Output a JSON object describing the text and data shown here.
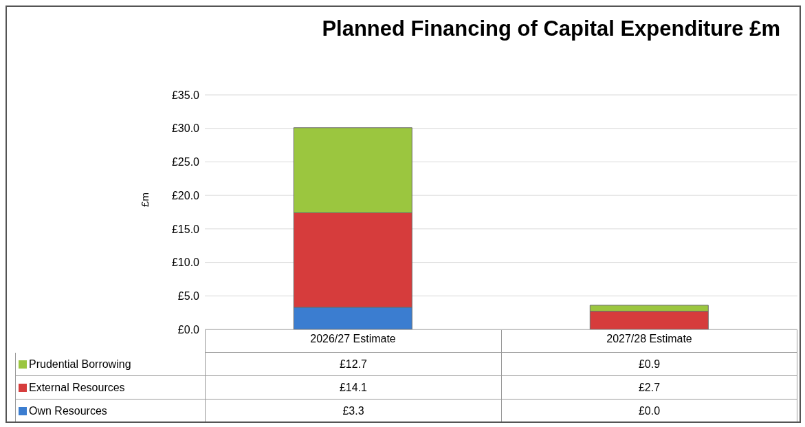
{
  "chart_data": {
    "type": "bar",
    "title": "Planned Financing of Capital Expenditure £m",
    "ylabel": "£m",
    "categories": [
      "2026/27 Estimate",
      "2027/28 Estimate"
    ],
    "stacked": true,
    "series": [
      {
        "name": "Own Resources",
        "color": "#3b7dd0",
        "values": [
          3.3,
          0.0
        ],
        "value_labels": [
          "£3.3",
          "£0.0"
        ]
      },
      {
        "name": "External Resources",
        "color": "#d63c3c",
        "values": [
          14.1,
          2.7
        ],
        "value_labels": [
          "£14.1",
          "£2.7"
        ]
      },
      {
        "name": "Prudential Borrowing",
        "color": "#9bc63f",
        "values": [
          12.7,
          0.9
        ],
        "value_labels": [
          "£12.7",
          "£0.9"
        ]
      }
    ],
    "ylim": [
      0,
      35
    ],
    "yticks": [
      {
        "value": 0,
        "label": "£0.0"
      },
      {
        "value": 5,
        "label": "£5.0"
      },
      {
        "value": 10,
        "label": "£10.0"
      },
      {
        "value": 15,
        "label": "£15.0"
      },
      {
        "value": 20,
        "label": "£20.0"
      },
      {
        "value": 25,
        "label": "£25.0"
      },
      {
        "value": 30,
        "label": "£30.0"
      },
      {
        "value": 35,
        "label": "£35.0"
      }
    ],
    "grid": "y",
    "legend": "bottom"
  }
}
